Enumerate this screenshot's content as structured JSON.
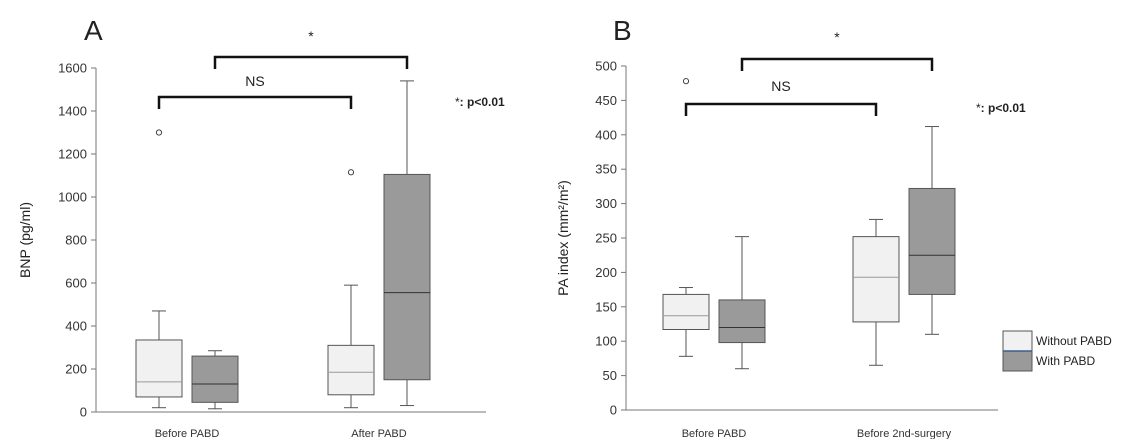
{
  "legend": [
    {
      "label": "Without PABD",
      "color": "#f1f1f1"
    },
    {
      "label": "With PABD",
      "color": "#9a9a9a"
    }
  ],
  "chart_data": [
    {
      "type": "box",
      "panel": "A",
      "ylabel": "BNP (pg/ml)",
      "ylim": [
        0,
        1600
      ],
      "yticks": [
        0,
        200,
        400,
        600,
        800,
        1000,
        1200,
        1400,
        1600
      ],
      "categories": [
        "Before PABD",
        "After PABD"
      ],
      "series": [
        {
          "name": "Without PABD",
          "boxes": [
            {
              "min": 20,
              "q1": 70,
              "median": 140,
              "q3": 335,
              "max": 470,
              "outliers": [
                1300
              ]
            },
            {
              "min": 20,
              "q1": 80,
              "median": 185,
              "q3": 310,
              "max": 590,
              "outliers": [
                1115
              ]
            }
          ]
        },
        {
          "name": "With PABD",
          "boxes": [
            {
              "min": 15,
              "q1": 45,
              "median": 130,
              "q3": 260,
              "max": 285,
              "outliers": []
            },
            {
              "min": 30,
              "q1": 150,
              "median": 555,
              "q3": 1105,
              "max": 1540,
              "outliers": []
            }
          ]
        }
      ],
      "brackets": [
        {
          "from": [
            0,
            0
          ],
          "to": [
            1,
            0
          ],
          "label": "NS"
        },
        {
          "from": [
            0,
            1
          ],
          "to": [
            1,
            1
          ],
          "label": "*"
        }
      ],
      "note_star": "*",
      "note_text": ": p<0.01"
    },
    {
      "type": "box",
      "panel": "B",
      "ylabel": "PA index (mm²/m²)",
      "ylim": [
        0,
        500
      ],
      "yticks": [
        0,
        50,
        100,
        150,
        200,
        250,
        300,
        350,
        400,
        450,
        500
      ],
      "categories": [
        "Before PABD",
        "Before 2nd-surgery"
      ],
      "series": [
        {
          "name": "Without PABD",
          "boxes": [
            {
              "min": 78,
              "q1": 117,
              "median": 137,
              "q3": 168,
              "max": 178,
              "outliers": [
                478
              ]
            },
            {
              "min": 65,
              "q1": 128,
              "median": 193,
              "q3": 252,
              "max": 277,
              "outliers": []
            }
          ]
        },
        {
          "name": "With PABD",
          "boxes": [
            {
              "min": 60,
              "q1": 98,
              "median": 120,
              "q3": 160,
              "max": 252,
              "outliers": []
            },
            {
              "min": 110,
              "q1": 168,
              "median": 225,
              "q3": 322,
              "max": 412,
              "outliers": []
            }
          ]
        }
      ],
      "brackets": [
        {
          "from": [
            0,
            0
          ],
          "to": [
            1,
            0
          ],
          "label": "NS"
        },
        {
          "from": [
            0,
            1
          ],
          "to": [
            1,
            1
          ],
          "label": "*"
        }
      ],
      "note_star": "*",
      "note_text": ": p<0.01"
    }
  ]
}
